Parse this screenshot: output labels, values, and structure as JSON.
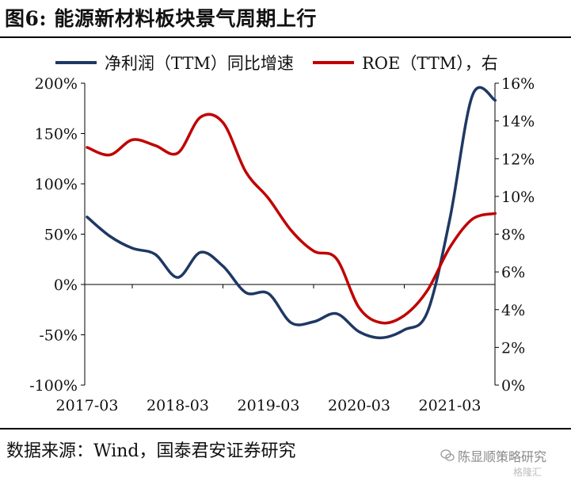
{
  "header": {
    "title": "图6: 能源新材料板块景气周期上行"
  },
  "footer": {
    "source": "数据来源：Wind，国泰君安证券研究"
  },
  "watermark": {
    "text": "陈显顺策略研究",
    "subtext": "格隆汇",
    "icon": "wechat-icon"
  },
  "colors": {
    "series1": "#1f3864",
    "series2": "#c00000",
    "axis": "#000000"
  },
  "chart_data": {
    "type": "line",
    "legend": {
      "placement": "top",
      "entries": [
        {
          "name": "净利润（TTM）同比增速",
          "color": "#1f3864"
        },
        {
          "name": "ROE（TTM），右",
          "color": "#c00000"
        }
      ]
    },
    "x_ticks": [
      "2017-03",
      "2018-03",
      "2019-03",
      "2020-03",
      "2021-03"
    ],
    "y_left": {
      "range": [
        -100,
        200
      ],
      "ticks": [
        "200%",
        "150%",
        "100%",
        "50%",
        "0%",
        "-50%",
        "-100%"
      ],
      "tick_values": [
        200,
        150,
        100,
        50,
        0,
        -50,
        -100
      ]
    },
    "y_right": {
      "range": [
        0,
        16
      ],
      "ticks": [
        "16%",
        "14%",
        "12%",
        "10%",
        "8%",
        "6%",
        "4%",
        "2%",
        "0%"
      ],
      "tick_values": [
        16,
        14,
        12,
        10,
        8,
        6,
        4,
        2,
        0
      ]
    },
    "grid": false,
    "series": [
      {
        "name": "净利润（TTM）同比增速",
        "axis": "left",
        "color": "#1f3864",
        "points": [
          [
            "2017-03",
            67
          ],
          [
            "2017-06",
            48
          ],
          [
            "2017-09",
            36
          ],
          [
            "2017-12",
            30
          ],
          [
            "2018-03",
            7
          ],
          [
            "2018-06",
            32
          ],
          [
            "2018-09",
            18
          ],
          [
            "2018-12",
            -8
          ],
          [
            "2019-03",
            -9
          ],
          [
            "2019-06",
            -38
          ],
          [
            "2019-09",
            -37
          ],
          [
            "2019-12",
            -29
          ],
          [
            "2020-03",
            -47
          ],
          [
            "2020-06",
            -53
          ],
          [
            "2020-09",
            -45
          ],
          [
            "2020-12",
            -28
          ],
          [
            "2021-03",
            65
          ],
          [
            "2021-06",
            188
          ],
          [
            "2021-09",
            183
          ]
        ]
      },
      {
        "name": "ROE（TTM），右",
        "axis": "right",
        "color": "#c00000",
        "points": [
          [
            "2017-03",
            12.6
          ],
          [
            "2017-06",
            12.2
          ],
          [
            "2017-09",
            13.0
          ],
          [
            "2017-12",
            12.7
          ],
          [
            "2018-03",
            12.3
          ],
          [
            "2018-06",
            14.2
          ],
          [
            "2018-09",
            13.9
          ],
          [
            "2018-12",
            11.3
          ],
          [
            "2019-03",
            9.9
          ],
          [
            "2019-06",
            8.2
          ],
          [
            "2019-09",
            7.1
          ],
          [
            "2019-12",
            6.7
          ],
          [
            "2020-03",
            4.1
          ],
          [
            "2020-06",
            3.3
          ],
          [
            "2020-09",
            3.7
          ],
          [
            "2020-12",
            5.0
          ],
          [
            "2021-03",
            7.3
          ],
          [
            "2021-06",
            8.8
          ],
          [
            "2021-09",
            9.1
          ]
        ]
      }
    ]
  }
}
